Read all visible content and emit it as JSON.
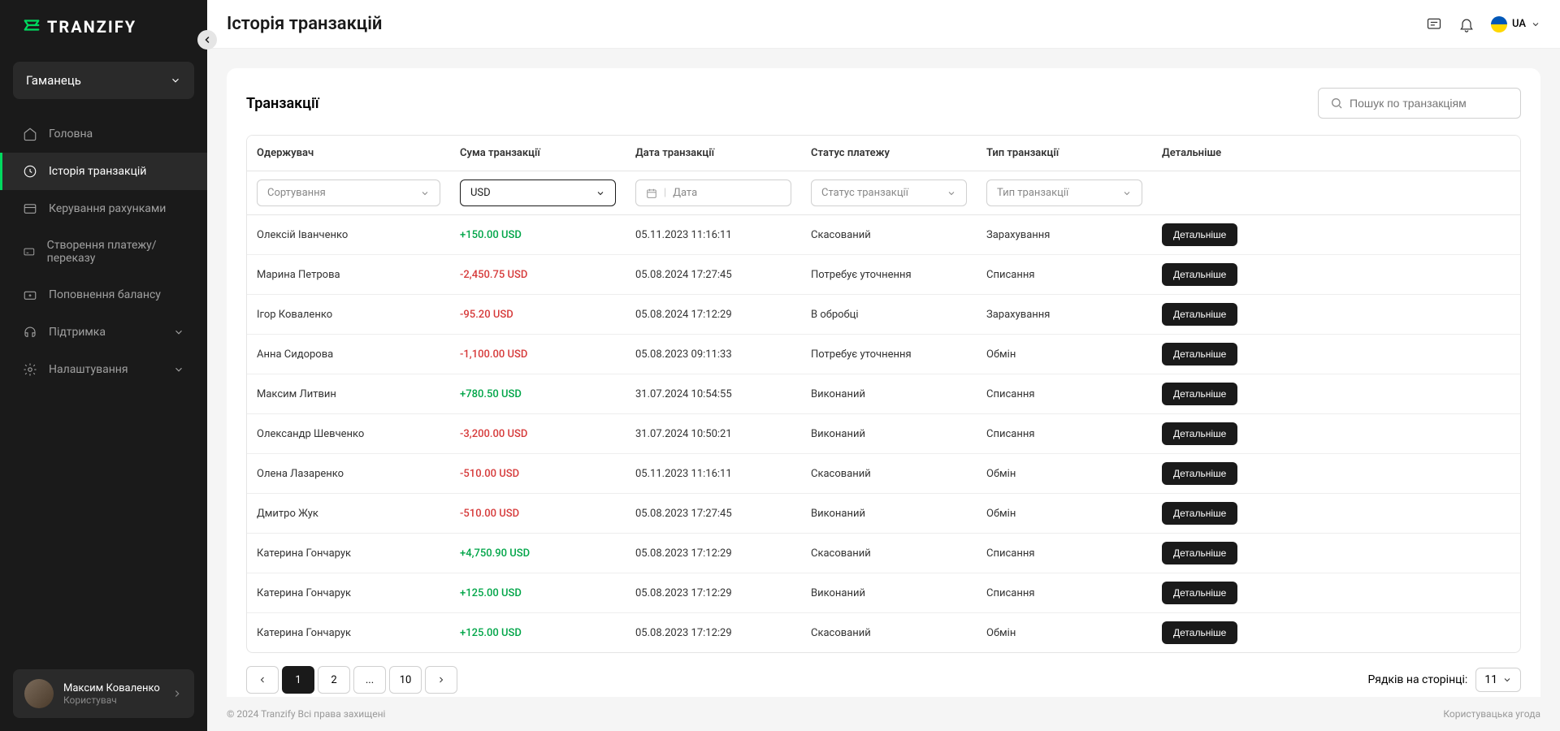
{
  "brand": "TRANZIFY",
  "sidebar": {
    "wallet_label": "Гаманець",
    "items": [
      {
        "label": "Головна"
      },
      {
        "label": "Історія транзакцій"
      },
      {
        "label": "Керування рахунками"
      },
      {
        "label": "Створення платежу/переказу"
      },
      {
        "label": "Поповнення балансу"
      },
      {
        "label": "Підтримка"
      },
      {
        "label": "Налаштування"
      }
    ],
    "user": {
      "name": "Максим Коваленко",
      "role": "Користувач"
    }
  },
  "header": {
    "title": "Історія транзакцій",
    "lang": "UA"
  },
  "card": {
    "title": "Транзакції",
    "search_placeholder": "Пошук по транзакціям",
    "columns": {
      "recipient": "Одержувач",
      "amount": "Сума транзакції",
      "date": "Дата транзакції",
      "status": "Статус платежу",
      "type": "Тип транзакції",
      "details": "Детальніше"
    },
    "filters": {
      "sort_placeholder": "Сортування",
      "currency": "USD",
      "date_placeholder": "Дата",
      "status_placeholder": "Статус транзакції",
      "type_placeholder": "Тип транзакції"
    },
    "details_label": "Детальніше",
    "rows": [
      {
        "recipient": "Олексій Іванченко",
        "amount": "+150.00 USD",
        "positive": true,
        "date": "05.11.2023 11:16:11",
        "status": "Скасований",
        "type": "Зарахування"
      },
      {
        "recipient": "Марина Петрова",
        "amount": "-2,450.75 USD",
        "positive": false,
        "date": "05.08.2024 17:27:45",
        "status": "Потребує уточнення",
        "type": "Списання"
      },
      {
        "recipient": "Ігор Коваленко",
        "amount": "-95.20 USD",
        "positive": false,
        "date": "05.08.2024 17:12:29",
        "status": "В обробці",
        "type": "Зарахування"
      },
      {
        "recipient": "Анна Сидорова",
        "amount": "-1,100.00 USD",
        "positive": false,
        "date": "05.08.2023 09:11:33",
        "status": "Потребує уточнення",
        "type": "Обмін"
      },
      {
        "recipient": "Максим Литвин",
        "amount": "+780.50 USD",
        "positive": true,
        "date": "31.07.2024 10:54:55",
        "status": "Виконаний",
        "type": "Списання"
      },
      {
        "recipient": "Олександр Шевченко",
        "amount": "-3,200.00 USD",
        "positive": false,
        "date": "31.07.2024 10:50:21",
        "status": "Виконаний",
        "type": "Списання"
      },
      {
        "recipient": "Олена Лазаренко",
        "amount": "-510.00 USD",
        "positive": false,
        "date": "05.11.2023 11:16:11",
        "status": "Скасований",
        "type": "Обмін"
      },
      {
        "recipient": "Дмитро Жук",
        "amount": "-510.00 USD",
        "positive": false,
        "date": "05.08.2023 17:27:45",
        "status": "Виконаний",
        "type": "Обмін"
      },
      {
        "recipient": "Катерина Гончарук",
        "amount": "+4,750.90 USD",
        "positive": true,
        "date": "05.08.2023 17:12:29",
        "status": "Скасований",
        "type": "Списання"
      },
      {
        "recipient": "Катерина Гончарук",
        "amount": "+125.00 USD",
        "positive": true,
        "date": "05.08.2023 17:12:29",
        "status": "Виконаний",
        "type": "Списання"
      },
      {
        "recipient": "Катерина Гончарук",
        "amount": "+125.00 USD",
        "positive": true,
        "date": "05.08.2023 17:12:29",
        "status": "Скасований",
        "type": "Обмін"
      }
    ],
    "pagination": {
      "pages": [
        "1",
        "2",
        "...",
        "10"
      ],
      "rows_label": "Рядків на сторінці:",
      "rows_value": "11"
    }
  },
  "footer": {
    "copyright": "© 2024 Tranzify Всі права захищені",
    "agreement": "Користувацька угода"
  }
}
